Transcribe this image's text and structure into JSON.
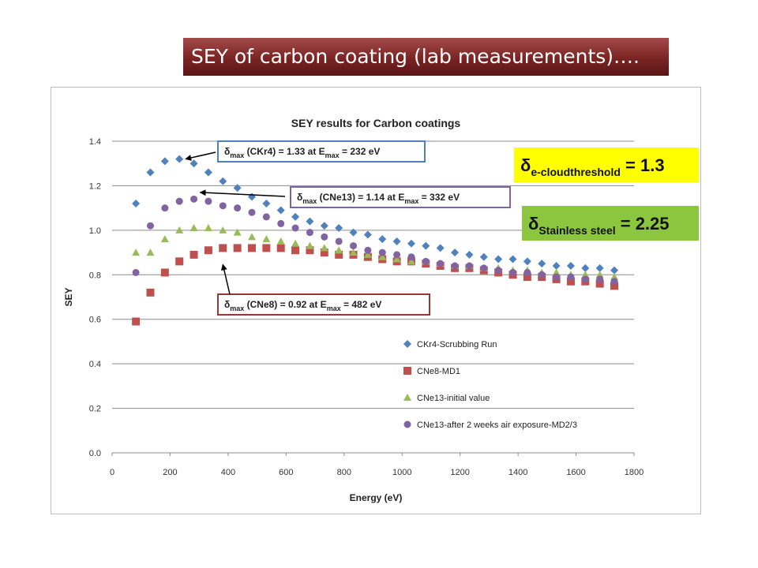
{
  "slide": {
    "title": "SEY of carbon coating (lab measurements)…."
  },
  "chart_data": {
    "type": "scatter",
    "title": "SEY results for Carbon coatings",
    "xlabel": "Energy (eV)",
    "ylabel": "SEY",
    "xlim": [
      0,
      1800
    ],
    "ylim": [
      0,
      1.4
    ],
    "xticks": [
      0,
      200,
      400,
      600,
      800,
      1000,
      1200,
      1400,
      1600,
      1800
    ],
    "yticks": [
      0.0,
      0.2,
      0.4,
      0.6,
      0.8,
      1.0,
      1.2,
      1.4
    ],
    "ytick_labels": [
      "0.0",
      "0.2",
      "0.4",
      "0.6",
      "0.8",
      "1.0",
      "1.2",
      "1.4"
    ],
    "grid": "horizontal",
    "legend_position": "lower-right",
    "x": [
      82,
      132,
      182,
      232,
      282,
      332,
      382,
      432,
      482,
      532,
      582,
      632,
      682,
      732,
      782,
      832,
      882,
      932,
      982,
      1032,
      1082,
      1132,
      1182,
      1232,
      1282,
      1332,
      1382,
      1432,
      1482,
      1532,
      1582,
      1632,
      1682,
      1732
    ],
    "series": [
      {
        "name": "CKr4-Scrubbing Run",
        "marker": "diamond",
        "color": "#4f81bd",
        "values": [
          1.12,
          1.26,
          1.31,
          1.32,
          1.3,
          1.26,
          1.22,
          1.19,
          1.15,
          1.12,
          1.09,
          1.06,
          1.04,
          1.02,
          1.01,
          0.99,
          0.98,
          0.96,
          0.95,
          0.94,
          0.93,
          0.92,
          0.9,
          0.89,
          0.88,
          0.87,
          0.87,
          0.86,
          0.85,
          0.84,
          0.84,
          0.83,
          0.83,
          0.82
        ]
      },
      {
        "name": "CNe8-MD1",
        "marker": "square",
        "color": "#c0504d",
        "values": [
          0.59,
          0.72,
          0.81,
          0.86,
          0.89,
          0.91,
          0.92,
          0.92,
          0.92,
          0.92,
          0.92,
          0.91,
          0.91,
          0.9,
          0.89,
          0.89,
          0.88,
          0.87,
          0.86,
          0.86,
          0.85,
          0.84,
          0.83,
          0.83,
          0.82,
          0.81,
          0.8,
          0.79,
          0.79,
          0.78,
          0.77,
          0.77,
          0.76,
          0.75
        ]
      },
      {
        "name": "CNe13-initial value",
        "marker": "triangle",
        "color": "#9bbb59",
        "values": [
          0.9,
          0.9,
          0.96,
          1.0,
          1.01,
          1.01,
          1.0,
          0.99,
          0.97,
          0.96,
          0.95,
          0.94,
          0.93,
          0.92,
          0.91,
          0.9,
          0.89,
          0.88,
          0.87,
          0.86,
          0.86,
          0.85,
          0.84,
          0.84,
          0.83,
          0.83,
          0.82,
          0.82,
          0.81,
          0.81,
          0.8,
          0.8,
          0.8,
          0.79
        ]
      },
      {
        "name": "CNe13-after 2 weeks air exposure-MD2/3",
        "marker": "circle",
        "color": "#8064a2",
        "values": [
          0.81,
          1.02,
          1.1,
          1.13,
          1.14,
          1.13,
          1.11,
          1.1,
          1.08,
          1.06,
          1.03,
          1.01,
          0.99,
          0.97,
          0.95,
          0.93,
          0.91,
          0.9,
          0.89,
          0.88,
          0.86,
          0.85,
          0.84,
          0.84,
          0.83,
          0.82,
          0.81,
          0.81,
          0.8,
          0.79,
          0.79,
          0.78,
          0.78,
          0.77
        ]
      }
    ],
    "annotations": [
      {
        "id": "ckr4",
        "prefix": "δ",
        "sub": "max",
        "middle": " (CKr4) = 1.33 at E",
        "sub2": "max",
        "suffix": " = 232 eV",
        "border_color": "#4f81bd",
        "arrow_to": [
          232,
          1.32
        ]
      },
      {
        "id": "cne13",
        "prefix": "δ",
        "sub": "max",
        "middle": " (CNe13) = 1.14 at E",
        "sub2": "max",
        "suffix": " = 332 eV",
        "border_color": "#8064a2",
        "arrow_to": [
          282,
          1.17
        ]
      },
      {
        "id": "cne8",
        "prefix": "δ",
        "sub": "max",
        "middle": " (CNe8) = 0.92 at E",
        "sub2": "max",
        "suffix": " = 482 eV",
        "border_color": "#953735",
        "arrow_to": [
          382,
          0.86
        ]
      }
    ],
    "callouts": [
      {
        "id": "threshold",
        "prefix": "δ",
        "sub": "e-cloudthreshold",
        "suffix": " = 1.3",
        "bg": "#ffff00"
      },
      {
        "id": "stainless",
        "prefix": "δ",
        "sub": "Stainless steel",
        "suffix": " = 2.25",
        "bg": "#8cc63f"
      }
    ]
  }
}
